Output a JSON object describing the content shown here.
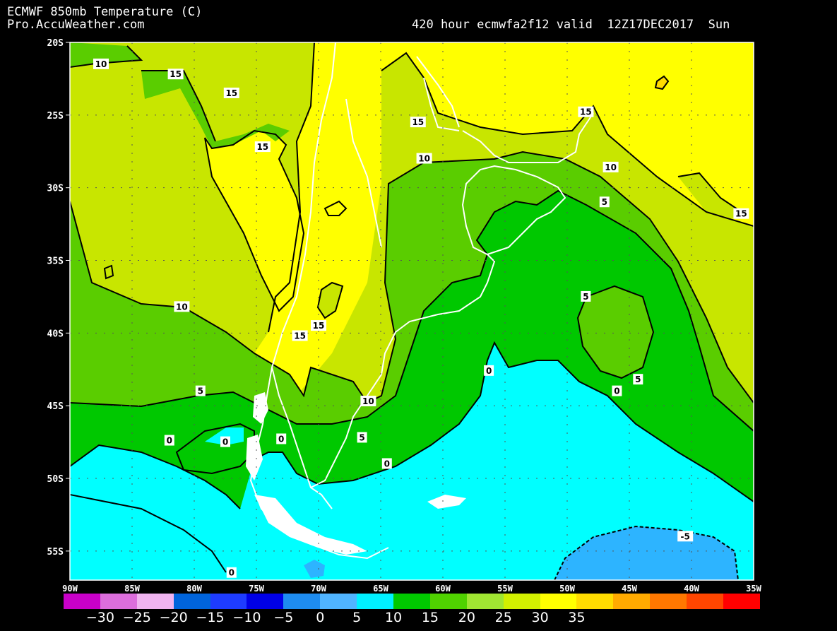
{
  "header": {
    "title": "ECMWF 850mb Temperature (C)",
    "source": "Pro.AccuWeather.com",
    "run_info": "420 hour ecmwfa2f12 valid  12Z17DEC2017  Sun"
  },
  "map": {
    "lat_labels": [
      "20S",
      "25S",
      "30S",
      "35S",
      "40S",
      "45S",
      "50S",
      "55S"
    ],
    "lon_labels": [
      "90W",
      "85W",
      "80W",
      "75W",
      "70W",
      "65W",
      "60W",
      "55W",
      "50W",
      "45W",
      "40W",
      "35W"
    ],
    "contour_labels": [
      {
        "text": "10",
        "lon": -87.5,
        "lat": -21.5
      },
      {
        "text": "15",
        "lon": -81.5,
        "lat": -22.2
      },
      {
        "text": "15",
        "lon": -77.0,
        "lat": -23.5
      },
      {
        "text": "15",
        "lon": -74.5,
        "lat": -27.2
      },
      {
        "text": "15",
        "lon": -62.0,
        "lat": -25.5
      },
      {
        "text": "15",
        "lon": -48.5,
        "lat": -24.8
      },
      {
        "text": "10",
        "lon": -61.5,
        "lat": -28.0
      },
      {
        "text": "10",
        "lon": -46.5,
        "lat": -28.6
      },
      {
        "text": "5",
        "lon": -47.0,
        "lat": -31.0
      },
      {
        "text": "15",
        "lon": -36.0,
        "lat": -31.8
      },
      {
        "text": "5",
        "lon": -48.5,
        "lat": -37.5
      },
      {
        "text": "10",
        "lon": -81.0,
        "lat": -38.2
      },
      {
        "text": "15",
        "lon": -70.0,
        "lat": -39.5
      },
      {
        "text": "15",
        "lon": -71.5,
        "lat": -40.2
      },
      {
        "text": "0",
        "lon": -56.3,
        "lat": -42.6
      },
      {
        "text": "5",
        "lon": -79.5,
        "lat": -44.0
      },
      {
        "text": "5",
        "lon": -44.3,
        "lat": -43.2
      },
      {
        "text": "0",
        "lon": -46.0,
        "lat": -44.0
      },
      {
        "text": "10",
        "lon": -66.0,
        "lat": -44.7
      },
      {
        "text": "5",
        "lon": -66.5,
        "lat": -47.2
      },
      {
        "text": "0",
        "lon": -82.0,
        "lat": -47.4
      },
      {
        "text": "0",
        "lon": -77.5,
        "lat": -47.5
      },
      {
        "text": "0",
        "lon": -73.0,
        "lat": -47.3
      },
      {
        "text": "0",
        "lon": -64.5,
        "lat": -49.0
      },
      {
        "text": "-5",
        "lon": -40.5,
        "lat": -54.0
      },
      {
        "text": "0",
        "lon": -77.0,
        "lat": -56.5
      }
    ]
  },
  "colorbar": {
    "colors": [
      "#c800c8",
      "#dc6edc",
      "#f0b4f0",
      "#0064dc",
      "#1e3cff",
      "#0000e6",
      "#1e8cf0",
      "#50b4ff",
      "#00f0ff",
      "#00c800",
      "#50d200",
      "#a0e632",
      "#d2f000",
      "#ffff00",
      "#ffdc00",
      "#ffaa00",
      "#ff7800",
      "#ff4600",
      "#ff0000"
    ],
    "labels": [
      "−30",
      "−25",
      "−20",
      "−15",
      "−10",
      "−5",
      "0",
      "5",
      "10",
      "15",
      "20",
      "25",
      "30",
      "35"
    ]
  },
  "colors": {
    "background": "#000000",
    "cyan": "#00ffff",
    "blue_cold": "#2db4ff",
    "green_dark": "#00c800",
    "green_mid": "#5acd00",
    "yellow_green": "#c8e600",
    "yellow": "#ffff00"
  }
}
